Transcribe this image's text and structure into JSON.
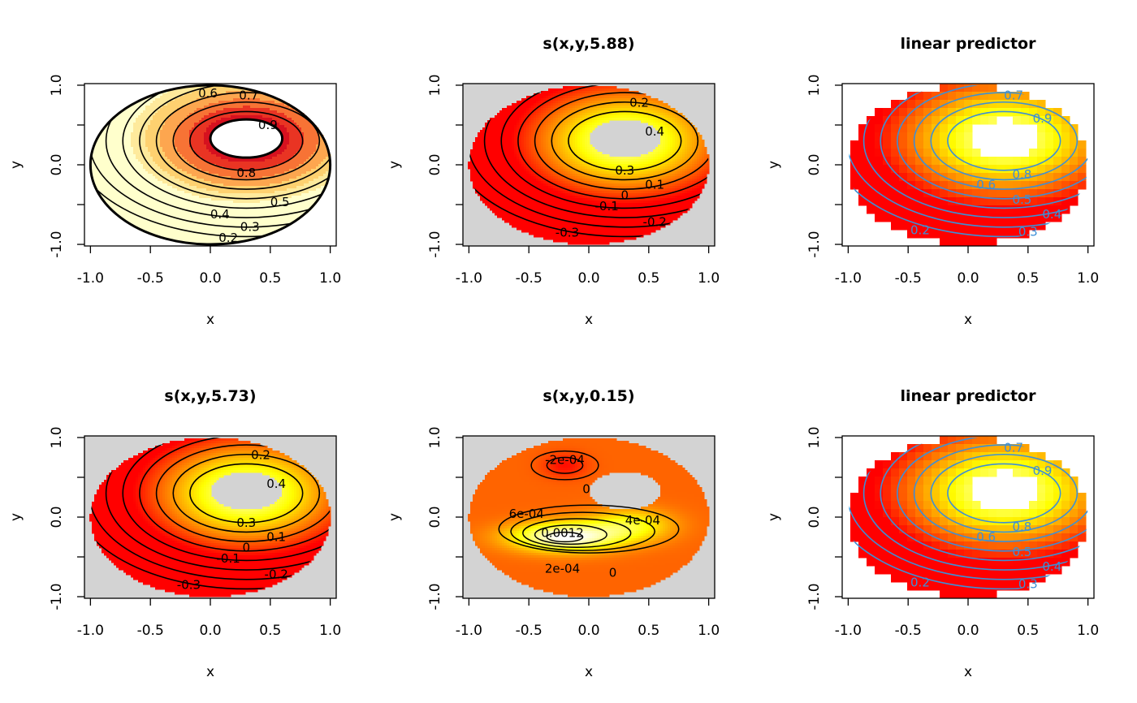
{
  "chart_data": [
    {
      "type": "heatmap",
      "panel": "top-left",
      "title": "",
      "xlabel": "x",
      "ylabel": "y",
      "xlim": [
        -1,
        1
      ],
      "ylim": [
        -1,
        1
      ],
      "xticks": [
        "-1.0",
        "-0.5",
        "0.0",
        "0.5",
        "1.0"
      ],
      "yticks": [
        "-1.0",
        "0.0",
        "1.0"
      ],
      "background": "#ffffff",
      "palette": "heat-dark",
      "contour_color": "#000000",
      "contour_labels": [
        "0.2",
        "0.3",
        "0.4",
        "0.5",
        "0.6",
        "0.7",
        "0.8",
        "0.9"
      ],
      "field": "true"
    },
    {
      "type": "heatmap",
      "panel": "top-middle",
      "title": "s(x,y,5.88)",
      "xlabel": "x",
      "ylabel": "y",
      "xlim": [
        -1,
        1
      ],
      "ylim": [
        -1,
        1
      ],
      "xticks": [
        "-1.0",
        "-0.5",
        "0.0",
        "0.5",
        "1.0"
      ],
      "yticks": [
        "-1.0",
        "0.0",
        "1.0"
      ],
      "background": "#d3d3d3",
      "palette": "heat",
      "contour_color": "#000000",
      "contour_labels": [
        "-0.3",
        "-0.2",
        "-0.1",
        "0",
        "0.1",
        "0.2",
        "0.3",
        "0.4"
      ],
      "field": "smooth"
    },
    {
      "type": "heatmap",
      "panel": "top-right",
      "title": "linear predictor",
      "xlabel": "x",
      "ylabel": "y",
      "xlim": [
        -1,
        1
      ],
      "ylim": [
        -1,
        1
      ],
      "xticks": [
        "-1.0",
        "-0.5",
        "0.0",
        "0.5",
        "1.0"
      ],
      "yticks": [
        "-1.0",
        "0.0",
        "1.0"
      ],
      "background": "#ffffff",
      "palette": "heat-blocky",
      "contour_color": "#3d8fd6",
      "contour_labels": [
        "0.2",
        "0.3",
        "0.4",
        "0.5",
        "0.6",
        "0.7",
        "0.8",
        "0.9"
      ],
      "field": "linpred"
    },
    {
      "type": "heatmap",
      "panel": "bottom-left",
      "title": "s(x,y,5.73)",
      "xlabel": "x",
      "ylabel": "y",
      "xlim": [
        -1,
        1
      ],
      "ylim": [
        -1,
        1
      ],
      "xticks": [
        "-1.0",
        "-0.5",
        "0.0",
        "0.5",
        "1.0"
      ],
      "yticks": [
        "-1.0",
        "0.0",
        "1.0"
      ],
      "background": "#d3d3d3",
      "palette": "heat",
      "contour_color": "#000000",
      "contour_labels": [
        "-0.3",
        "-0.2",
        "-0.1",
        "0",
        "0.1",
        "0.2",
        "0.3",
        "0.4"
      ],
      "field": "smooth"
    },
    {
      "type": "heatmap",
      "panel": "bottom-middle",
      "title": "s(x,y,0.15)",
      "xlabel": "x",
      "ylabel": "y",
      "xlim": [
        -1,
        1
      ],
      "ylim": [
        -1,
        1
      ],
      "xticks": [
        "-1.0",
        "-0.5",
        "0.0",
        "0.5",
        "1.0"
      ],
      "yticks": [
        "-1.0",
        "0.0",
        "1.0"
      ],
      "background": "#d3d3d3",
      "palette": "heat",
      "contour_color": "#000000",
      "contour_labels": [
        "-2e-04",
        "0",
        "6e-04",
        "4e-04",
        "0.0012",
        "2e-04",
        "0"
      ],
      "field": "small"
    },
    {
      "type": "heatmap",
      "panel": "bottom-right",
      "title": "linear predictor",
      "xlabel": "x",
      "ylabel": "y",
      "xlim": [
        -1,
        1
      ],
      "ylim": [
        -1,
        1
      ],
      "xticks": [
        "-1.0",
        "-0.5",
        "0.0",
        "0.5",
        "1.0"
      ],
      "yticks": [
        "-1.0",
        "0.0",
        "1.0"
      ],
      "background": "#ffffff",
      "palette": "heat-blocky",
      "contour_color": "#3d8fd6",
      "contour_labels": [
        "0.2",
        "0.3",
        "0.4",
        "0.5",
        "0.6",
        "0.7",
        "0.8",
        "0.9"
      ],
      "field": "linpred"
    }
  ]
}
